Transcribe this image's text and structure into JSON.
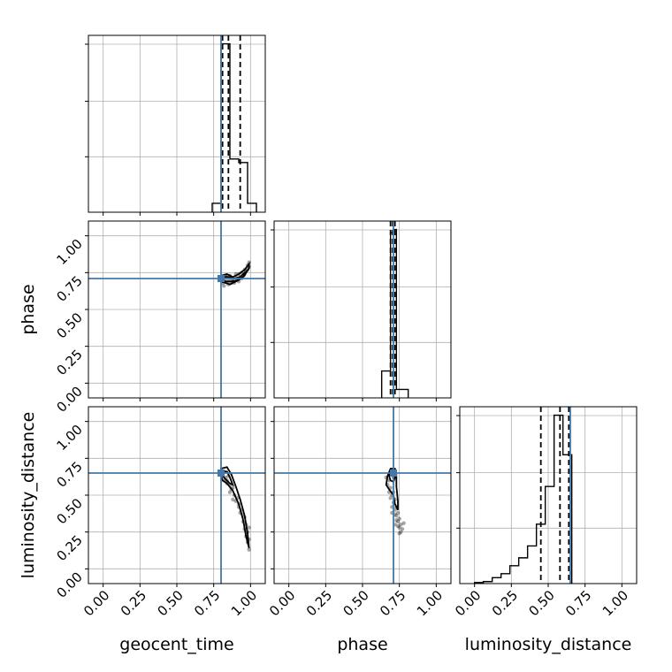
{
  "chart_data": {
    "type": "corner",
    "parameters": [
      "geocent_time",
      "phase",
      "luminosity_distance"
    ],
    "tick_labels": [
      "0.00",
      "0.25",
      "0.50",
      "0.75",
      "1.00"
    ],
    "axis_range": [
      -0.1,
      1.1
    ],
    "grid": true,
    "truth_color": "#4477aa",
    "truths": {
      "geocent_time": 0.8,
      "phase": 0.71,
      "luminosity_distance": 0.65
    },
    "histograms": [
      {
        "parameter": "geocent_time",
        "bin_edges": [
          0.74,
          0.8,
          0.86,
          0.92,
          0.98,
          1.04
        ],
        "counts": [
          0.05,
          0.95,
          0.3,
          0.28,
          0.05
        ],
        "quantiles": [
          0.81,
          0.85,
          0.93
        ]
      },
      {
        "parameter": "phase",
        "bin_edges": [
          0.63,
          0.69,
          0.71,
          0.73,
          0.75,
          0.81
        ],
        "counts": [
          0.16,
          0.98,
          1.0,
          0.05,
          0.05
        ],
        "quantiles": [
          0.69,
          0.705,
          0.72
        ]
      },
      {
        "parameter": "luminosity_distance",
        "bin_edges": [
          0.0,
          0.06,
          0.12,
          0.18,
          0.24,
          0.3,
          0.36,
          0.42,
          0.48,
          0.54,
          0.6,
          0.66
        ],
        "counts": [
          0.005,
          0.01,
          0.03,
          0.05,
          0.09,
          0.13,
          0.19,
          0.3,
          0.49,
          0.85,
          0.65
        ],
        "quantiles": [
          0.45,
          0.58,
          0.64
        ]
      }
    ],
    "scatter_panels": [
      {
        "x": "geocent_time",
        "y": "phase",
        "samples": [
          [
            0.8,
            0.71
          ],
          [
            0.82,
            0.7
          ],
          [
            0.84,
            0.69
          ],
          [
            0.86,
            0.7
          ],
          [
            0.88,
            0.71
          ],
          [
            0.9,
            0.72
          ],
          [
            0.92,
            0.74
          ],
          [
            0.94,
            0.75
          ],
          [
            0.96,
            0.77
          ],
          [
            0.98,
            0.8
          ],
          [
            0.99,
            0.82
          ],
          [
            0.85,
            0.67
          ],
          [
            0.87,
            0.68
          ],
          [
            0.83,
            0.73
          ],
          [
            0.89,
            0.68
          ],
          [
            0.91,
            0.7
          ],
          [
            0.93,
            0.72
          ],
          [
            0.95,
            0.73
          ],
          [
            0.97,
            0.76
          ],
          [
            0.81,
            0.68
          ],
          [
            0.86,
            0.73
          ],
          [
            0.88,
            0.69
          ],
          [
            0.92,
            0.69
          ],
          [
            0.94,
            0.71
          ],
          [
            0.96,
            0.74
          ],
          [
            0.98,
            0.77
          ],
          [
            0.84,
            0.72
          ],
          [
            0.9,
            0.74
          ],
          [
            0.99,
            0.79
          ],
          [
            0.82,
            0.66
          ]
        ],
        "contours": [
          [
            [
              0.8,
              0.73
            ],
            [
              0.84,
              0.74
            ],
            [
              0.88,
              0.72
            ],
            [
              0.92,
              0.74
            ],
            [
              0.96,
              0.77
            ],
            [
              0.99,
              0.81
            ],
            [
              0.99,
              0.78
            ],
            [
              0.95,
              0.72
            ],
            [
              0.9,
              0.69
            ],
            [
              0.86,
              0.67
            ],
            [
              0.83,
              0.68
            ],
            [
              0.8,
              0.69
            ]
          ],
          [
            [
              0.81,
              0.72
            ],
            [
              0.85,
              0.72
            ],
            [
              0.89,
              0.71
            ],
            [
              0.93,
              0.72
            ],
            [
              0.96,
              0.75
            ],
            [
              0.96,
              0.73
            ],
            [
              0.92,
              0.7
            ],
            [
              0.87,
              0.69
            ],
            [
              0.83,
              0.69
            ],
            [
              0.81,
              0.7
            ]
          ]
        ]
      },
      {
        "x": "geocent_time",
        "y": "luminosity_distance",
        "samples": [
          [
            0.8,
            0.65
          ],
          [
            0.82,
            0.66
          ],
          [
            0.83,
            0.62
          ],
          [
            0.84,
            0.6
          ],
          [
            0.86,
            0.57
          ],
          [
            0.87,
            0.54
          ],
          [
            0.89,
            0.5
          ],
          [
            0.9,
            0.46
          ],
          [
            0.92,
            0.42
          ],
          [
            0.93,
            0.38
          ],
          [
            0.95,
            0.32
          ],
          [
            0.96,
            0.27
          ],
          [
            0.97,
            0.22
          ],
          [
            0.98,
            0.18
          ],
          [
            0.99,
            0.13
          ],
          [
            0.85,
            0.63
          ],
          [
            0.88,
            0.55
          ],
          [
            0.91,
            0.48
          ],
          [
            0.94,
            0.4
          ],
          [
            0.96,
            0.35
          ],
          [
            0.97,
            0.3
          ],
          [
            0.98,
            0.25
          ],
          [
            0.99,
            0.2
          ],
          [
            0.82,
            0.6
          ],
          [
            0.84,
            0.58
          ],
          [
            0.86,
            0.52
          ],
          [
            0.88,
            0.47
          ],
          [
            0.92,
            0.44
          ],
          [
            0.95,
            0.37
          ],
          [
            0.99,
            0.28
          ]
        ],
        "contours": [
          [
            [
              0.8,
              0.68
            ],
            [
              0.84,
              0.69
            ],
            [
              0.87,
              0.64
            ],
            [
              0.9,
              0.56
            ],
            [
              0.93,
              0.47
            ],
            [
              0.96,
              0.36
            ],
            [
              0.98,
              0.24
            ],
            [
              0.99,
              0.14
            ],
            [
              0.97,
              0.22
            ],
            [
              0.95,
              0.33
            ],
            [
              0.92,
              0.44
            ],
            [
              0.88,
              0.53
            ],
            [
              0.84,
              0.58
            ],
            [
              0.81,
              0.6
            ],
            [
              0.8,
              0.63
            ]
          ],
          [
            [
              0.81,
              0.66
            ],
            [
              0.84,
              0.66
            ],
            [
              0.86,
              0.62
            ],
            [
              0.88,
              0.57
            ],
            [
              0.86,
              0.58
            ],
            [
              0.83,
              0.61
            ],
            [
              0.81,
              0.63
            ]
          ]
        ]
      },
      {
        "x": "phase",
        "y": "luminosity_distance",
        "samples": [
          [
            0.7,
            0.65
          ],
          [
            0.68,
            0.6
          ],
          [
            0.69,
            0.55
          ],
          [
            0.7,
            0.5
          ],
          [
            0.71,
            0.45
          ],
          [
            0.72,
            0.4
          ],
          [
            0.73,
            0.36
          ],
          [
            0.74,
            0.32
          ],
          [
            0.75,
            0.28
          ],
          [
            0.76,
            0.25
          ],
          [
            0.66,
            0.62
          ],
          [
            0.67,
            0.57
          ],
          [
            0.72,
            0.47
          ],
          [
            0.73,
            0.42
          ],
          [
            0.74,
            0.38
          ],
          [
            0.75,
            0.34
          ],
          [
            0.76,
            0.3
          ],
          [
            0.77,
            0.27
          ],
          [
            0.71,
            0.52
          ],
          [
            0.69,
            0.48
          ],
          [
            0.7,
            0.42
          ],
          [
            0.72,
            0.37
          ],
          [
            0.73,
            0.33
          ],
          [
            0.74,
            0.29
          ],
          [
            0.78,
            0.31
          ],
          [
            0.71,
            0.62
          ],
          [
            0.68,
            0.52
          ],
          [
            0.7,
            0.38
          ],
          [
            0.72,
            0.3
          ],
          [
            0.75,
            0.24
          ]
        ],
        "contours": [
          [
            [
              0.69,
              0.68
            ],
            [
              0.72,
              0.68
            ],
            [
              0.73,
              0.64
            ],
            [
              0.73,
              0.56
            ],
            [
              0.74,
              0.46
            ],
            [
              0.74,
              0.4
            ],
            [
              0.72,
              0.44
            ],
            [
              0.71,
              0.5
            ],
            [
              0.68,
              0.54
            ],
            [
              0.66,
              0.57
            ],
            [
              0.67,
              0.63
            ]
          ],
          [
            [
              0.69,
              0.66
            ],
            [
              0.71,
              0.66
            ],
            [
              0.72,
              0.62
            ],
            [
              0.71,
              0.59
            ],
            [
              0.69,
              0.6
            ],
            [
              0.68,
              0.63
            ]
          ]
        ]
      }
    ]
  }
}
